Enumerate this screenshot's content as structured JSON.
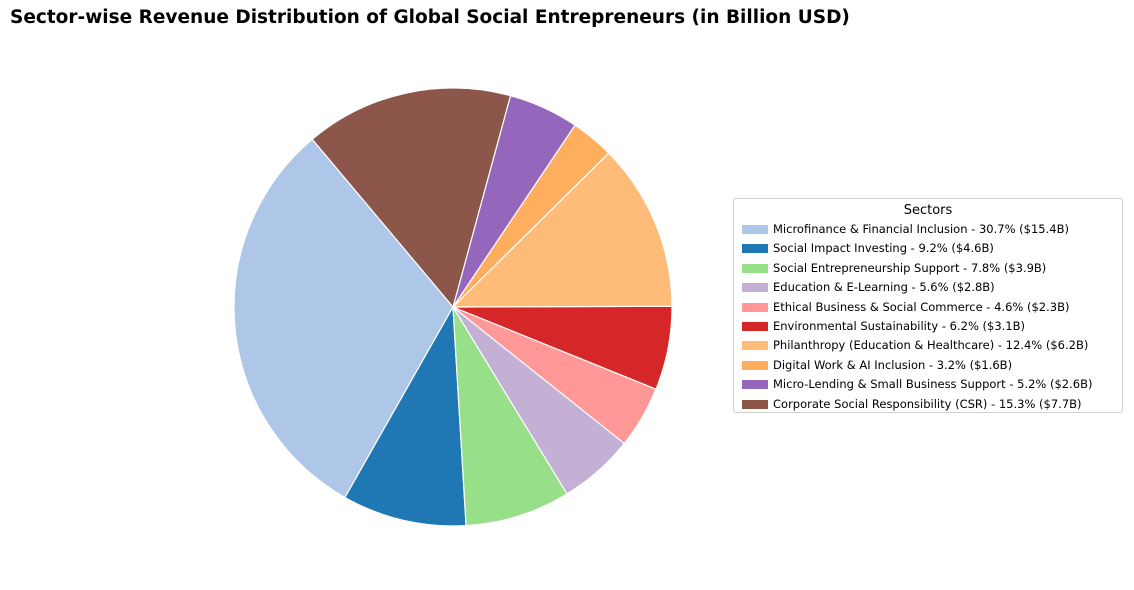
{
  "chart_data": {
    "type": "pie",
    "title": "Sector-wise Revenue Distribution of Global Social Entrepreneurs (in Billion USD)",
    "legend_title": "Sectors",
    "legend_position": "right",
    "start_angle_deg": 130,
    "direction": "counterclockwise",
    "slices": [
      {
        "label": "Microfinance & Financial Inclusion",
        "percent": 30.7,
        "value": 15.4,
        "color": "#aec7e8",
        "legend_text": "Microfinance & Financial Inclusion - 30.7% ($15.4B)"
      },
      {
        "label": "Social Impact Investing",
        "percent": 9.2,
        "value": 4.6,
        "color": "#1f77b4",
        "legend_text": "Social Impact Investing - 9.2% ($4.6B)"
      },
      {
        "label": "Social Entrepreneurship Support",
        "percent": 7.8,
        "value": 3.9,
        "color": "#98df8a",
        "legend_text": "Social Entrepreneurship Support - 7.8% ($3.9B)"
      },
      {
        "label": "Education & E-Learning",
        "percent": 5.6,
        "value": 2.8,
        "color": "#c5b0d5",
        "legend_text": "Education & E-Learning - 5.6% ($2.8B)"
      },
      {
        "label": "Ethical Business & Social Commerce",
        "percent": 4.6,
        "value": 2.3,
        "color": "#ff9896",
        "legend_text": "Ethical Business & Social Commerce - 4.6% ($2.3B)"
      },
      {
        "label": "Environmental Sustainability",
        "percent": 6.2,
        "value": 3.1,
        "color": "#d62728",
        "legend_text": "Environmental Sustainability - 6.2% ($3.1B)"
      },
      {
        "label": "Philanthropy (Education & Healthcare)",
        "percent": 12.4,
        "value": 6.2,
        "color": "#ffbb78",
        "legend_text": "Philanthropy (Education & Healthcare) - 12.4% ($6.2B)"
      },
      {
        "label": "Digital Work & AI Inclusion",
        "percent": 3.2,
        "value": 1.6,
        "color": "#ffae5e",
        "legend_text": "Digital Work & AI Inclusion - 3.2% ($1.6B)"
      },
      {
        "label": "Micro-Lending & Small Business Support",
        "percent": 5.2,
        "value": 2.6,
        "color": "#9467bd",
        "legend_text": "Micro-Lending & Small Business Support - 5.2% ($2.6B)"
      },
      {
        "label": "Corporate Social Responsibility (CSR)",
        "percent": 15.3,
        "value": 7.7,
        "color": "#8c564b",
        "legend_text": "Corporate Social Responsibility (CSR) - 15.3% ($7.7B)"
      }
    ]
  }
}
